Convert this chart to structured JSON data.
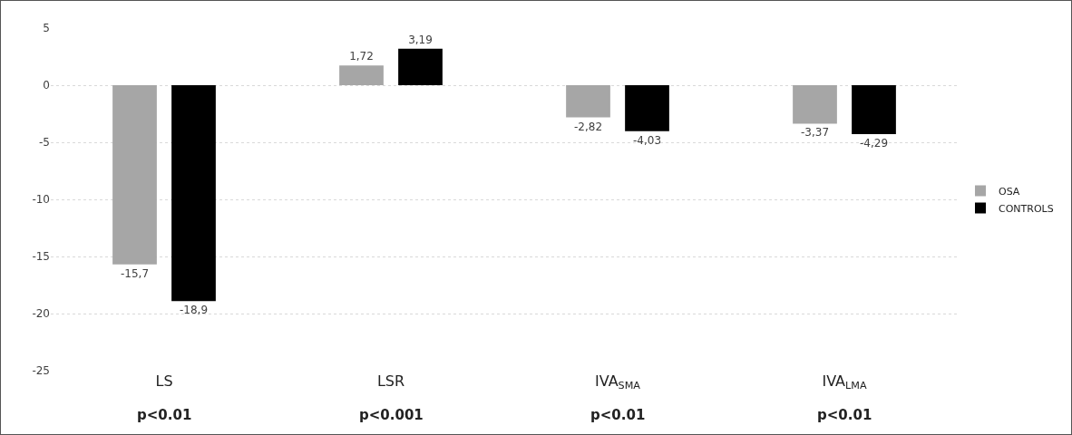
{
  "chart_data": {
    "type": "bar",
    "categories": [
      "LS",
      "LSR",
      "IVA$_{SMA}$",
      "IVA$_{LMA}$"
    ],
    "series": [
      {
        "name": "OSA",
        "color": "#a6a6a6",
        "values": [
          -15.7,
          1.72,
          -2.82,
          -3.37
        ],
        "value_labels": [
          "-15,7",
          "1,72",
          "-2,82",
          "-3,37"
        ]
      },
      {
        "name": "CONTROLS",
        "color": "#000000",
        "values": [
          -18.9,
          3.19,
          -4.03,
          -4.29
        ],
        "value_labels": [
          "-18,9",
          "3,19",
          "-4,03",
          "-4,29"
        ]
      }
    ],
    "ylim": [
      -25,
      5
    ],
    "yticks": [
      -25,
      -20,
      -15,
      -10,
      -5,
      0,
      5
    ],
    "grid": "y",
    "legend": "right",
    "annotations": [
      "p<0.01",
      "p<0.001",
      "p<0.01",
      "p<0.01"
    ]
  }
}
